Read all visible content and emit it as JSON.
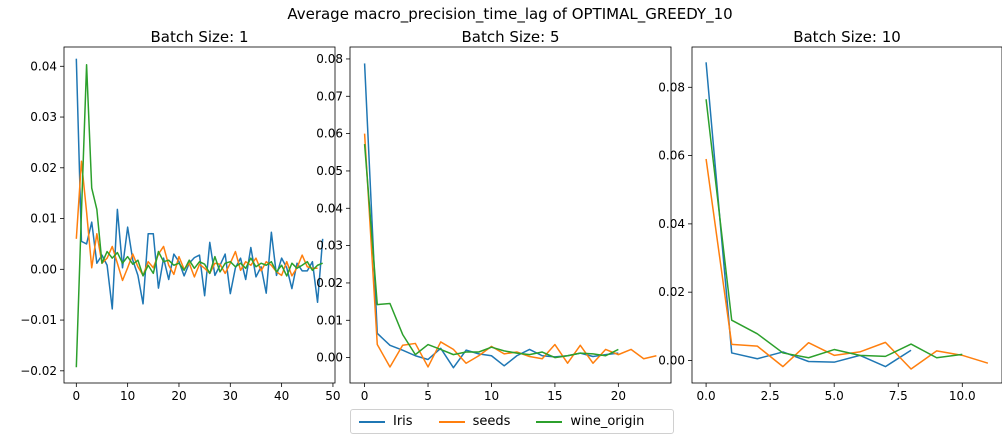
{
  "figure": {
    "suptitle": "Average macro_precision_time_lag of OPTIMAL_GREEDY_10"
  },
  "legend": {
    "items": [
      {
        "label": "Iris",
        "color": "#1f77b4"
      },
      {
        "label": "seeds",
        "color": "#ff7f0e"
      },
      {
        "label": "wine_origin",
        "color": "#2ca02c"
      }
    ]
  },
  "chart_data": [
    {
      "type": "line",
      "title": "Batch Size: 1",
      "xlim": [
        -2.4,
        50.4
      ],
      "ylim": [
        -0.0224,
        0.0438
      ],
      "xticks": [
        0,
        10,
        20,
        30,
        40,
        50
      ],
      "yticks": [
        -0.02,
        -0.01,
        0.0,
        0.01,
        0.02,
        0.03,
        0.04
      ],
      "ytick_labels": [
        "−0.02",
        "−0.01",
        "0.00",
        "0.01",
        "0.02",
        "0.03",
        "0.04"
      ],
      "series": [
        {
          "name": "Iris",
          "color": "#1f77b4",
          "x": [
            0,
            1,
            2,
            3,
            4,
            5,
            6,
            7,
            8,
            9,
            10,
            11,
            12,
            13,
            14,
            15,
            16,
            17,
            18,
            19,
            20,
            21,
            22,
            23,
            24,
            25,
            26,
            27,
            28,
            29,
            30,
            31,
            32,
            33,
            34,
            35,
            36,
            37,
            38,
            39,
            40,
            41,
            42,
            43,
            44,
            45,
            46,
            47,
            48
          ],
          "y": [
            0.0415,
            0.0055,
            0.005,
            0.0093,
            0.0012,
            0.0028,
            0.0008,
            -0.0078,
            0.0118,
            0.0003,
            0.0083,
            0.0018,
            -0.0012,
            -0.0068,
            0.007,
            0.007,
            -0.0037,
            0.0022,
            -0.002,
            0.003,
            0.0015,
            -0.0013,
            0.0012,
            0.0023,
            0.0028,
            -0.0052,
            0.0053,
            -0.0012,
            0.0008,
            0.003,
            -0.0048,
            0.0003,
            0.0022,
            -0.002,
            0.0043,
            -0.0015,
            0.0005,
            -0.0047,
            0.0073,
            -0.0012,
            0.0022,
            0.0003,
            -0.0038,
            0.0012,
            -0.0003,
            -0.0003,
            0.0015,
            -0.0065,
            0.006
          ]
        },
        {
          "name": "seeds",
          "color": "#ff7f0e",
          "x": [
            0,
            1,
            2,
            3,
            4,
            5,
            6,
            7,
            8,
            9,
            10,
            11,
            12,
            13,
            14,
            15,
            16,
            17,
            18,
            19,
            20,
            21,
            22,
            23,
            24,
            25,
            26,
            27,
            28,
            29,
            30,
            31,
            32,
            33,
            34,
            35,
            36,
            37,
            38,
            39,
            40,
            41,
            42,
            43,
            44,
            45,
            46,
            47
          ],
          "y": [
            0.006,
            0.0213,
            0.0113,
            0.0003,
            0.007,
            0.0012,
            0.0022,
            0.0045,
            0.0012,
            -0.0022,
            0.0003,
            0.003,
            0.0005,
            -0.0012,
            0.0015,
            0.0003,
            0.003,
            0.0045,
            0.0008,
            -0.001,
            0.0025,
            0.0,
            0.0012,
            -0.0015,
            0.001,
            0.0002,
            -0.0008,
            0.0012,
            0.001,
            -0.0008,
            0.0012,
            0.0035,
            -0.0002,
            0.0015,
            0.0008,
            0.0022,
            -0.0003,
            0.0015,
            0.0008,
            -0.0005,
            -0.0012,
            0.0015,
            -0.0013,
            0.0003,
            0.0028,
            0.0005,
            0.0002,
            0.0002
          ]
        },
        {
          "name": "wine_origin",
          "color": "#2ca02c",
          "x": [
            0,
            1,
            2,
            3,
            4,
            5,
            6,
            7,
            8,
            9,
            10,
            11,
            12,
            13,
            14,
            15,
            16,
            17,
            18,
            19,
            20,
            21,
            22,
            23,
            24,
            25,
            26,
            27,
            28,
            29,
            30,
            31,
            32,
            33,
            34,
            35,
            36,
            37,
            38,
            39,
            40,
            41,
            42,
            43,
            44,
            45,
            46,
            47,
            48
          ],
          "y": [
            -0.0193,
            0.0113,
            0.0403,
            0.016,
            0.0118,
            0.0012,
            0.0035,
            0.0022,
            0.0033,
            0.0012,
            0.0025,
            0.001,
            0.0018,
            -0.0013,
            0.0008,
            -0.0008,
            0.0035,
            0.0015,
            0.0018,
            0.0008,
            0.0012,
            -0.0002,
            0.0018,
            0.0002,
            0.0015,
            0.001,
            -0.0008,
            0.0025,
            -0.0005,
            0.0012,
            0.0015,
            0.0005,
            0.0012,
            0.0002,
            0.0022,
            0.0005,
            0.0012,
            0.0008,
            0.0015,
            -0.0005,
            0.0008,
            -0.0013,
            0.0012,
            0.0002,
            0.0008,
            0.0015,
            -0.0002,
            0.0008,
            0.0012
          ]
        }
      ]
    },
    {
      "type": "line",
      "title": "Batch Size: 5",
      "xlim": [
        -1.15,
        24.15
      ],
      "ylim": [
        -0.0068,
        0.0832
      ],
      "xticks": [
        0,
        5,
        10,
        15,
        20
      ],
      "yticks": [
        0.0,
        0.01,
        0.02,
        0.03,
        0.04,
        0.05,
        0.06,
        0.07,
        0.08
      ],
      "ytick_labels": [
        "0.00",
        "0.01",
        "0.02",
        "0.03",
        "0.04",
        "0.05",
        "0.06",
        "0.07",
        "0.08"
      ],
      "series": [
        {
          "name": "Iris",
          "color": "#1f77b4",
          "x": [
            0,
            1,
            2,
            3,
            4,
            5,
            6,
            7,
            8,
            9,
            10,
            11,
            12,
            13,
            14,
            15,
            16,
            17,
            18,
            19,
            20
          ],
          "y": [
            0.0788,
            0.0065,
            0.0033,
            0.002,
            0.0005,
            -0.0005,
            0.0025,
            -0.0027,
            0.002,
            0.001,
            0.0005,
            -0.0022,
            0.0005,
            0.0022,
            0.0005,
            0.0002,
            0.0005,
            0.0012,
            0.0003,
            0.0008,
            0.0012
          ]
        },
        {
          "name": "seeds",
          "color": "#ff7f0e",
          "x": [
            0,
            1,
            2,
            3,
            4,
            5,
            6,
            7,
            8,
            9,
            10,
            11,
            12,
            13,
            14,
            15,
            16,
            17,
            18,
            19,
            20,
            21,
            22,
            23
          ],
          "y": [
            0.06,
            0.0035,
            -0.0025,
            0.0033,
            0.0038,
            -0.0025,
            0.0042,
            0.0022,
            -0.0015,
            0.0005,
            0.003,
            0.001,
            0.0015,
            0.0003,
            -0.0003,
            0.0035,
            -0.0015,
            0.0033,
            -0.0015,
            0.0022,
            0.0008,
            0.0022,
            -0.0003,
            0.0005
          ]
        },
        {
          "name": "wine_origin",
          "color": "#2ca02c",
          "x": [
            0,
            1,
            2,
            3,
            4,
            5,
            6,
            7,
            8,
            9,
            10,
            11,
            12,
            13,
            14,
            15,
            16,
            17,
            18,
            19,
            20
          ],
          "y": [
            0.0572,
            0.0142,
            0.0145,
            0.0062,
            0.0008,
            0.0035,
            0.0022,
            0.0008,
            0.0015,
            0.0015,
            0.0028,
            0.0018,
            0.0012,
            0.0008,
            0.0015,
            0.0,
            0.0005,
            0.0012,
            0.001,
            0.0005,
            0.0022
          ]
        }
      ]
    },
    {
      "type": "line",
      "title": "Batch Size: 10",
      "xlim": [
        -0.55,
        11.55
      ],
      "ylim": [
        -0.0066,
        0.0918
      ],
      "xticks": [
        0,
        2.5,
        5,
        7.5,
        10
      ],
      "yticks": [
        0.0,
        0.02,
        0.04,
        0.06,
        0.08
      ],
      "xtick_labels": [
        "0.0",
        "2.5",
        "5.0",
        "7.5",
        "10.0"
      ],
      "ytick_labels": [
        "0.00",
        "0.02",
        "0.04",
        "0.06",
        "0.08"
      ],
      "series": [
        {
          "name": "Iris",
          "color": "#1f77b4",
          "x": [
            0,
            1,
            2,
            3,
            4,
            5,
            6,
            7,
            8
          ],
          "y": [
            0.0873,
            0.0022,
            0.0005,
            0.0025,
            -0.0003,
            -0.0005,
            0.0015,
            -0.0018,
            0.003
          ]
        },
        {
          "name": "seeds",
          "color": "#ff7f0e",
          "x": [
            0,
            1,
            2,
            3,
            4,
            5,
            6,
            7,
            8,
            9,
            10,
            11
          ],
          "y": [
            0.059,
            0.0047,
            0.0042,
            -0.0018,
            0.0052,
            0.0015,
            0.0025,
            0.0053,
            -0.0025,
            0.0028,
            0.0015,
            -0.0008
          ]
        },
        {
          "name": "wine_origin",
          "color": "#2ca02c",
          "x": [
            0,
            1,
            2,
            3,
            4,
            5,
            6,
            7,
            8,
            9,
            10
          ],
          "y": [
            0.0765,
            0.0118,
            0.0078,
            0.0022,
            0.0008,
            0.0032,
            0.0015,
            0.0012,
            0.0048,
            0.0008,
            0.0018
          ]
        }
      ]
    }
  ]
}
